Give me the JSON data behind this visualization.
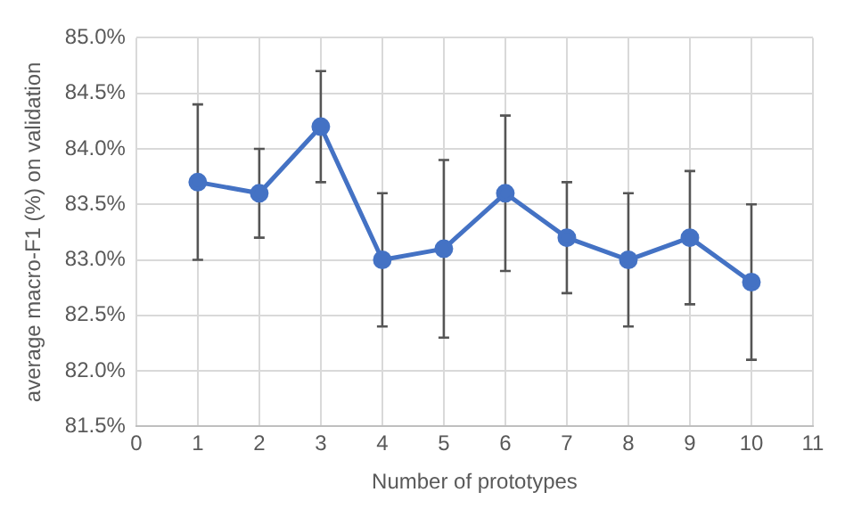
{
  "chart_data": {
    "type": "line",
    "xlabel": "Number of prototypes",
    "ylabel": "average macro-F1 (%) on validation",
    "x": [
      1,
      2,
      3,
      4,
      5,
      6,
      7,
      8,
      9,
      10
    ],
    "series": [
      {
        "color": "#4472c4",
        "values": [
          83.7,
          83.6,
          84.2,
          83.0,
          83.1,
          83.6,
          83.2,
          83.0,
          83.2,
          82.8
        ],
        "errors": [
          0.7,
          0.4,
          0.5,
          0.6,
          0.8,
          0.7,
          0.5,
          0.6,
          0.6,
          0.7
        ]
      }
    ],
    "xlim": [
      0,
      11
    ],
    "xticks": [
      0,
      1,
      2,
      3,
      4,
      5,
      6,
      7,
      8,
      9,
      10,
      11
    ],
    "ylim": [
      81.5,
      85
    ],
    "yticks": [
      {
        "value": 81.5,
        "label": "81.5%"
      },
      {
        "value": 82,
        "label": "82.0%"
      },
      {
        "value": 82.5,
        "label": "82.5%"
      },
      {
        "value": 83,
        "label": "83.0%"
      },
      {
        "value": 83.5,
        "label": "83.5%"
      },
      {
        "value": 84,
        "label": "84.0%"
      },
      {
        "value": 84.5,
        "label": "84.5%"
      },
      {
        "value": 85,
        "label": "85.0%"
      }
    ],
    "grid": true,
    "legend": false,
    "marker": "circle",
    "line_style": "solid"
  }
}
